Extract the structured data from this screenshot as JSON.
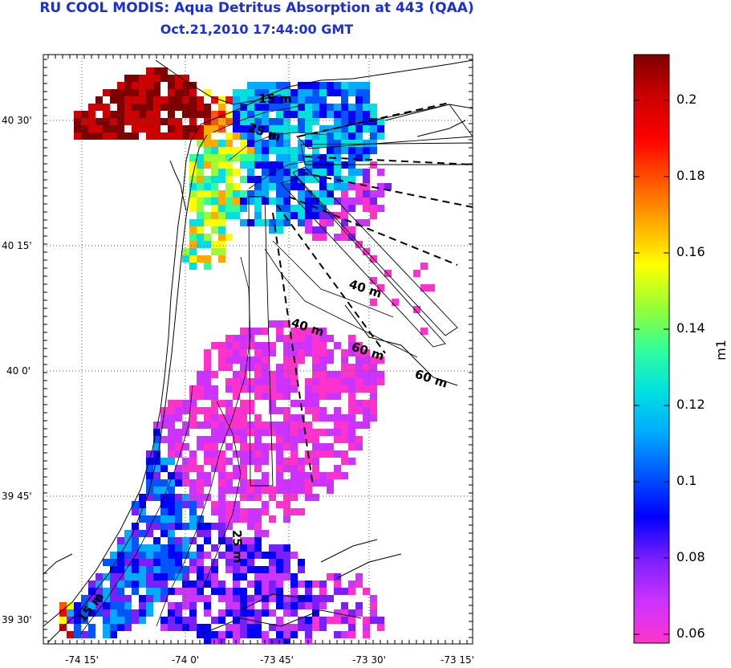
{
  "title": {
    "line1": "RU COOL MODIS: Aqua Detritus Absorption at 443 (QAA)",
    "line2": "Oct.21,2010 17:44:00 GMT"
  },
  "axes": {
    "lon_ticks": [
      "-74 15'",
      "-74 0'",
      "-73 45'",
      "-73 30'",
      "-73 15'"
    ],
    "lat_ticks": [
      "40 30'",
      "40 15'",
      "40 0'",
      "39 45'",
      "39 30'"
    ]
  },
  "depth_labels": [
    "15 m",
    "25 m",
    "40 m",
    "40 m",
    "60 m",
    "60 m",
    "25 m",
    "15 m"
  ],
  "colorbar": {
    "label": "m1",
    "ticks": [
      "0.2",
      "0.18",
      "0.16",
      "0.14",
      "0.12",
      "0.1",
      "0.08",
      "0.06"
    ],
    "range": [
      0.056,
      0.212
    ],
    "colors": [
      "#ff33cc",
      "#cc33ff",
      "#7a1fff",
      "#0000ff",
      "#0055ff",
      "#00aaff",
      "#00e0e0",
      "#33ff99",
      "#99ff33",
      "#ffff00",
      "#ffaa00",
      "#ff5500",
      "#ff0000",
      "#cc0000",
      "#7f0000"
    ]
  }
}
